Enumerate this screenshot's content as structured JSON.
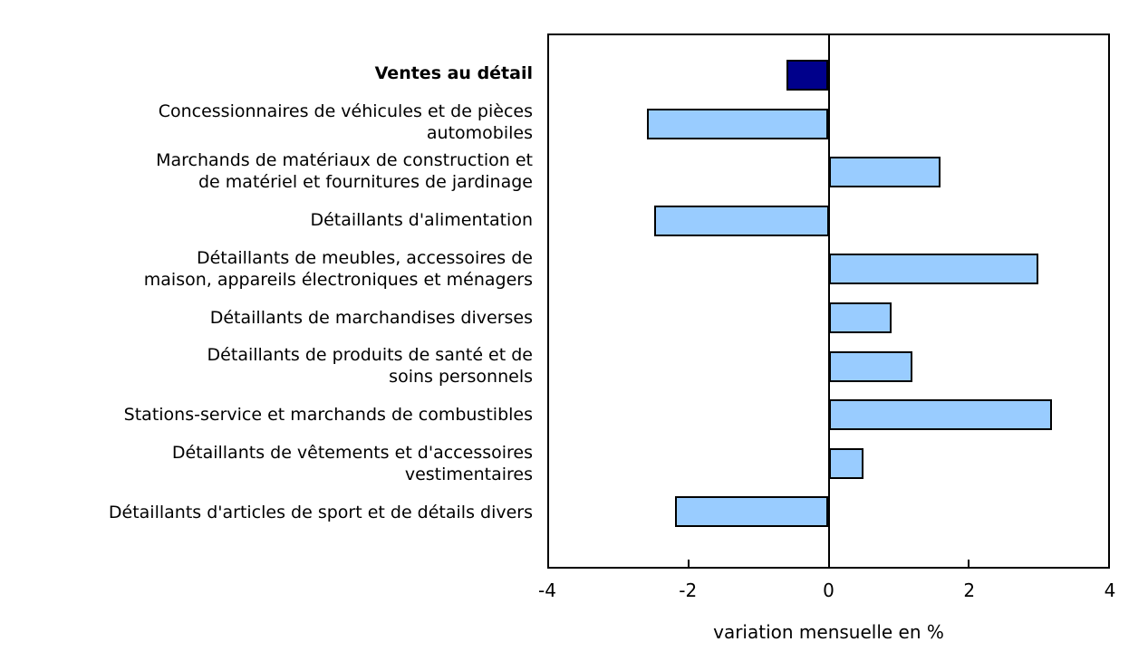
{
  "chart_data": {
    "type": "bar",
    "orientation": "horizontal",
    "categories": [
      "Ventes au détail",
      "Concessionnaires de véhicules et de pièces\nautomobiles",
      "Marchands de matériaux de construction et\nde matériel et fournitures de jardinage",
      "Détaillants d'alimentation",
      "Détaillants de meubles, accessoires de\nmaison, appareils électroniques et ménagers",
      "Détaillants de marchandises diverses",
      "Détaillants de produits de santé et de\nsoins personnels",
      "Stations-service et marchands de combustibles",
      "Détaillants de vêtements et d'accessoires\nvestimentaires",
      "Détaillants d'articles de sport et de détails divers"
    ],
    "values": [
      -0.6,
      -2.6,
      1.6,
      -2.5,
      3.0,
      0.9,
      1.2,
      3.2,
      0.5,
      -2.2
    ],
    "highlight_index": 0,
    "xlabel": "variation mensuelle en %",
    "xlim": [
      -4,
      4
    ],
    "xticks": [
      -4,
      -2,
      0,
      2,
      4
    ],
    "grid": "none",
    "legend": "none",
    "bar_color": "#99CCFF",
    "highlight_color": "#00008B",
    "bar_border_color": "#000000",
    "axis_color": "#000000"
  }
}
